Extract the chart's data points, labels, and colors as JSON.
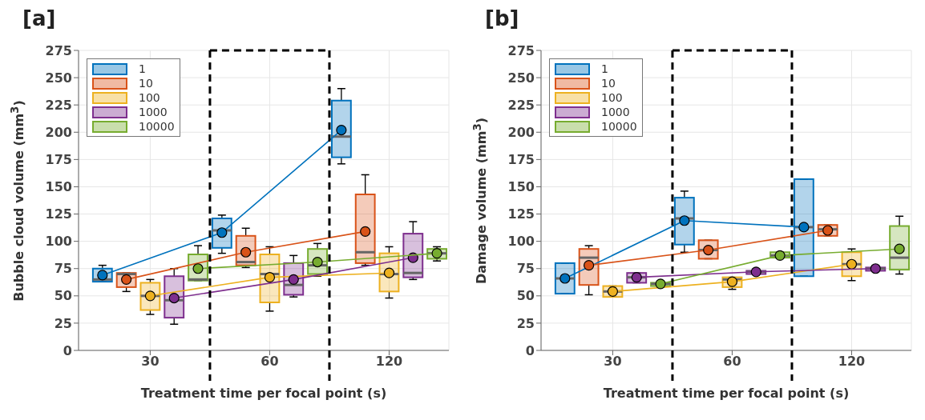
{
  "chart_data": [
    {
      "type": "box",
      "title": "[a]",
      "xlabel": "Treatment time per focal point (s)",
      "ylabel": "Bubble cloud volume (mm$^{3}$)",
      "categories": [
        null,
        null,
        "30",
        null,
        null,
        null,
        null,
        "60",
        null,
        null,
        null,
        null,
        "120",
        null,
        null
      ],
      "ylim": [
        0,
        275
      ],
      "yticks": [
        0,
        25,
        50,
        75,
        100,
        125,
        150,
        175,
        200,
        225,
        250,
        275
      ],
      "grid": true,
      "legend": "top left",
      "line_style": "solid",
      "series": [
        {
          "name": "1",
          "color": "#0072bd",
          "boxes": [
            {
              "low": 63,
              "q1": 63,
              "median": 65,
              "q3": 75,
              "high": 78
            },
            null,
            null,
            null,
            null,
            {
              "low": 89,
              "q1": 94,
              "median": 110,
              "q3": 121,
              "high": 124
            },
            null,
            null,
            null,
            null,
            {
              "low": 171,
              "q1": 177,
              "median": 196,
              "q3": 229,
              "high": 240
            },
            null,
            null,
            null,
            null
          ]
        },
        {
          "name": "10",
          "color": "#d95319",
          "boxes": [
            null,
            {
              "low": 54,
              "q1": 58,
              "median": 70,
              "q3": 71,
              "high": 71
            },
            null,
            null,
            null,
            null,
            {
              "low": 76,
              "q1": 78,
              "median": 81,
              "q3": 105,
              "high": 112
            },
            null,
            null,
            null,
            null,
            {
              "low": 78,
              "q1": 80,
              "median": 90,
              "q3": 143,
              "high": 161
            },
            null,
            null,
            null
          ]
        },
        {
          "name": "100",
          "color": "#edb120",
          "boxes": [
            null,
            null,
            {
              "low": 33,
              "q1": 37,
              "median": 50,
              "q3": 62,
              "high": 65
            },
            null,
            null,
            null,
            null,
            {
              "low": 36,
              "q1": 44,
              "median": 70,
              "q3": 88,
              "high": 95
            },
            null,
            null,
            null,
            null,
            {
              "low": 48,
              "q1": 54,
              "median": 70,
              "q3": 89,
              "high": 95
            },
            null,
            null
          ]
        },
        {
          "name": "1000",
          "color": "#7e2f8e",
          "boxes": [
            null,
            null,
            null,
            {
              "low": 24,
              "q1": 30,
              "median": 46,
              "q3": 68,
              "high": 75
            },
            null,
            null,
            null,
            null,
            {
              "low": 49,
              "q1": 51,
              "median": 60,
              "q3": 80,
              "high": 87
            },
            null,
            null,
            null,
            null,
            {
              "low": 65,
              "q1": 67,
              "median": 71,
              "q3": 107,
              "high": 118
            },
            null
          ]
        },
        {
          "name": "10000",
          "color": "#77ac30",
          "boxes": [
            null,
            null,
            null,
            null,
            {
              "low": 64,
              "q1": 64,
              "median": 65,
              "q3": 88,
              "high": 96
            },
            null,
            null,
            null,
            null,
            {
              "low": 68,
              "q1": 70,
              "median": 78,
              "q3": 93,
              "high": 98
            },
            null,
            null,
            null,
            null,
            {
              "low": 82,
              "q1": 84,
              "median": 89,
              "q3": 93,
              "high": 95
            }
          ]
        },
        {
          "type": "line",
          "color": "#0072bd",
          "marker": "circle",
          "values": [
            69,
            null,
            null,
            null,
            null,
            108,
            null,
            null,
            null,
            null,
            202,
            null,
            null,
            null,
            null
          ]
        },
        {
          "type": "line",
          "color": "#d95319",
          "marker": "circle",
          "values": [
            null,
            65,
            null,
            null,
            null,
            null,
            90,
            null,
            null,
            null,
            null,
            109,
            null,
            null,
            null
          ]
        },
        {
          "type": "line",
          "color": "#edb120",
          "marker": "circle",
          "values": [
            null,
            null,
            50,
            null,
            null,
            null,
            null,
            67,
            null,
            null,
            null,
            null,
            71,
            null,
            null
          ]
        },
        {
          "type": "line",
          "color": "#7e2f8e",
          "marker": "circle",
          "values": [
            null,
            null,
            null,
            48,
            null,
            null,
            null,
            null,
            65,
            null,
            null,
            null,
            null,
            85,
            null
          ]
        },
        {
          "type": "line",
          "color": "#77ac30",
          "marker": "circle",
          "values": [
            null,
            null,
            null,
            null,
            75,
            null,
            null,
            null,
            null,
            81,
            null,
            null,
            null,
            null,
            89
          ]
        }
      ]
    },
    {
      "type": "box",
      "title": "[b]",
      "xlabel": "Treatment time per focal point (s)",
      "ylabel": "Damage volume (mm$^{3}$)",
      "categories": [
        null,
        null,
        "30",
        null,
        null,
        null,
        null,
        "60",
        null,
        null,
        null,
        null,
        "120",
        null,
        null
      ],
      "ylim": [
        0,
        275
      ],
      "yticks": [
        0,
        25,
        50,
        75,
        100,
        125,
        150,
        175,
        200,
        225,
        250,
        275
      ],
      "grid": true,
      "legend": "top left",
      "line_style": "solid",
      "series": [
        {
          "name": "1",
          "color": "#0072bd",
          "boxes": [
            {
              "low": 52,
              "q1": 52,
              "median": 66,
              "q3": 80,
              "high": 80
            },
            null,
            null,
            null,
            null,
            {
              "low": 90,
              "q1": 97,
              "median": 121,
              "q3": 140,
              "high": 146
            },
            null,
            null,
            null,
            null,
            {
              "low": 68,
              "q1": 68,
              "median": 113,
              "q3": 157,
              "high": 157
            },
            null,
            null,
            null,
            null
          ]
        },
        {
          "name": "10",
          "color": "#d95319",
          "boxes": [
            null,
            {
              "low": 51,
              "q1": 60,
              "median": 85,
              "q3": 93,
              "high": 96
            },
            null,
            null,
            null,
            null,
            {
              "low": 84,
              "q1": 84,
              "median": 92,
              "q3": 101,
              "high": 101
            },
            null,
            null,
            null,
            null,
            {
              "low": 105,
              "q1": 105,
              "median": 111,
              "q3": 115,
              "high": 115
            },
            null,
            null,
            null
          ]
        },
        {
          "name": "100",
          "color": "#edb120",
          "boxes": [
            null,
            null,
            {
              "low": 49,
              "q1": 49,
              "median": 54,
              "q3": 59,
              "high": 59
            },
            null,
            null,
            null,
            null,
            {
              "low": 56,
              "q1": 58,
              "median": 65,
              "q3": 67,
              "high": 67
            },
            null,
            null,
            null,
            null,
            {
              "low": 64,
              "q1": 68,
              "median": 79,
              "q3": 90,
              "high": 93
            },
            null,
            null
          ]
        },
        {
          "name": "1000",
          "color": "#7e2f8e",
          "boxes": [
            null,
            null,
            null,
            {
              "low": 62,
              "q1": 62,
              "median": 67,
              "q3": 71,
              "high": 71
            },
            null,
            null,
            null,
            null,
            {
              "low": 70,
              "q1": 70,
              "median": 72,
              "q3": 73,
              "high": 73
            },
            null,
            null,
            null,
            null,
            {
              "low": 73,
              "q1": 73,
              "median": 75,
              "q3": 76,
              "high": 76
            },
            null
          ]
        },
        {
          "name": "10000",
          "color": "#77ac30",
          "boxes": [
            null,
            null,
            null,
            null,
            {
              "low": 59,
              "q1": 59,
              "median": 61,
              "q3": 62,
              "high": 62
            },
            null,
            null,
            null,
            null,
            {
              "low": 85,
              "q1": 85,
              "median": 87,
              "q3": 90,
              "high": 90
            },
            null,
            null,
            null,
            null,
            {
              "low": 70,
              "q1": 74,
              "median": 85,
              "q3": 114,
              "high": 123
            }
          ]
        },
        {
          "type": "line",
          "color": "#0072bd",
          "marker": "circle",
          "values": [
            66,
            null,
            null,
            null,
            null,
            119,
            null,
            null,
            null,
            null,
            113,
            null,
            null,
            null,
            null
          ]
        },
        {
          "type": "line",
          "color": "#d95319",
          "marker": "circle",
          "values": [
            null,
            78,
            null,
            null,
            null,
            null,
            92,
            null,
            null,
            null,
            null,
            110,
            null,
            null,
            null
          ]
        },
        {
          "type": "line",
          "color": "#edb120",
          "marker": "circle",
          "values": [
            null,
            null,
            54,
            null,
            null,
            null,
            null,
            63,
            null,
            null,
            null,
            null,
            79,
            null,
            null
          ]
        },
        {
          "type": "line",
          "color": "#7e2f8e",
          "marker": "circle",
          "values": [
            null,
            null,
            null,
            67,
            null,
            null,
            null,
            null,
            72,
            null,
            null,
            null,
            null,
            75,
            null
          ]
        },
        {
          "type": "line",
          "color": "#77ac30",
          "marker": "circle",
          "values": [
            null,
            null,
            null,
            null,
            61,
            null,
            null,
            null,
            null,
            87,
            null,
            null,
            null,
            null,
            93
          ]
        }
      ]
    }
  ]
}
